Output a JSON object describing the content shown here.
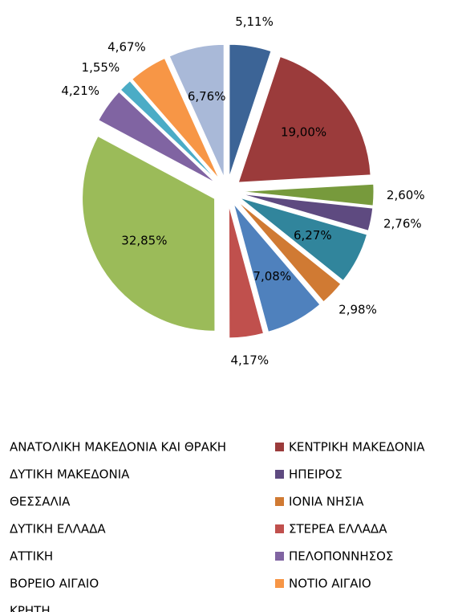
{
  "chart_data": {
    "type": "pie",
    "categories": [
      "ΑΝΑΤΟΛΙΚΗ ΜΑΚΕΔΟΝΙΑ ΚΑΙ ΘΡΑΚΗ",
      "ΚΕΝΤΡΙΚΗ ΜΑΚΕΔΟΝΙΑ",
      "ΔΥΤΙΚΗ ΜΑΚΕΔΟΝΙΑ",
      "ΗΠΕΙΡΟΣ",
      "ΘΕΣΣΑΛΙΑ",
      "ΙΟΝΙΑ ΝΗΣΙΑ",
      "ΔΥΤΙΚΗ ΕΛΛΑΔΑ",
      "ΣΤΕΡΕΑ ΕΛΛΑΔΑ",
      "ΑΤΤΙΚΗ",
      "ΠΕΛΟΠΟΝΝΗΣΟΣ",
      "ΒΟΡΕΙΟ ΑΙΓΑΙΟ",
      "ΝΟΤΙΟ ΑΙΓΑΙΟ",
      "ΚΡΗΤΗ"
    ],
    "values": [
      5.11,
      19.0,
      2.6,
      2.76,
      6.27,
      2.98,
      7.08,
      4.17,
      32.85,
      4.21,
      1.55,
      4.67,
      6.76
    ],
    "value_labels": [
      "5,11%",
      "19,00%",
      "2,60%",
      "2,76%",
      "6,27%",
      "2,98%",
      "7,08%",
      "4,17%",
      "32,85%",
      "4,21%",
      "1,55%",
      "4,67%",
      "6,76%"
    ],
    "colors": [
      "#3c6496",
      "#9b3b3b",
      "#779a3c",
      "#5e4a80",
      "#31859c",
      "#d07a33",
      "#4f81bd",
      "#c0504d",
      "#9bbb59",
      "#8064a2",
      "#4bacc6",
      "#f79646",
      "#a9b9d8"
    ],
    "legend": "bottom"
  }
}
